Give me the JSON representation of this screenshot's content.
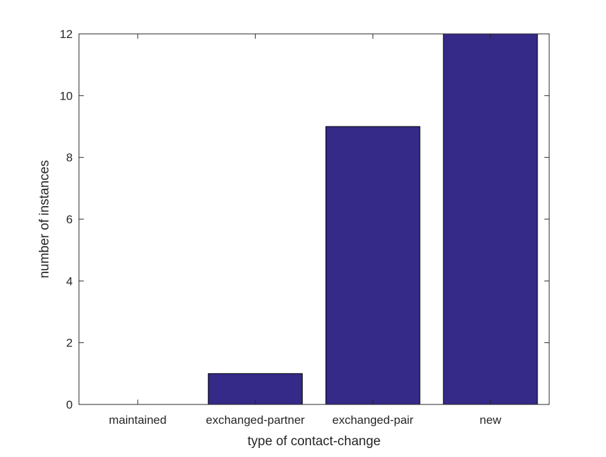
{
  "chart_data": {
    "type": "bar",
    "categories": [
      "maintained",
      "exchanged-partner",
      "exchanged-pair",
      "new"
    ],
    "values": [
      0,
      1,
      9,
      12
    ],
    "title": "",
    "xlabel": "type of contact-change",
    "ylabel": "number of instances",
    "ylim": [
      0,
      12
    ],
    "yticks": [
      0,
      2,
      4,
      6,
      8,
      10,
      12
    ],
    "grid": false,
    "bar_color": "#352a87"
  }
}
